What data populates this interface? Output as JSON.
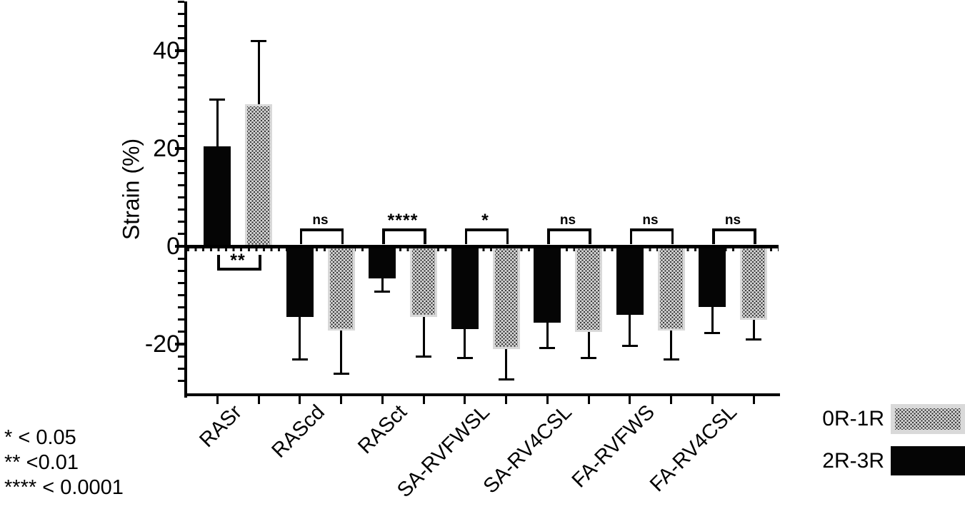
{
  "chart_data": {
    "type": "bar",
    "title": "",
    "ylabel": "Strain (%)",
    "xlabel": "",
    "ylim": [
      -30,
      50
    ],
    "yticks_major": [
      40,
      20,
      0,
      -20
    ],
    "ytick_minor_step": 2.5,
    "grid": false,
    "legend_position": "bottom-right",
    "categories": [
      "RASr",
      "RAScd",
      "RASct",
      "SA-RVFWSL",
      "SA-RV4CSL",
      "FA-RVFWS",
      "FA-RV4CSL"
    ],
    "series": [
      {
        "name": "2R-3R",
        "style": "solid-black",
        "color": "#050505",
        "values": [
          20.5,
          -14.4,
          -6.5,
          -17.0,
          -15.6,
          -14.0,
          -12.4
        ],
        "errors": [
          9.5,
          8.8,
          2.8,
          5.8,
          5.2,
          6.4,
          5.4
        ]
      },
      {
        "name": "0R-1R",
        "style": "dotted-gray",
        "color": "#dcdcdc",
        "dot_color": "#3c3c3c",
        "values": [
          29.0,
          -17.2,
          -14.4,
          -21.0,
          -17.5,
          -17.2,
          -15.0
        ],
        "errors": [
          13.0,
          8.8,
          8.2,
          6.2,
          5.3,
          5.9,
          4.1
        ]
      }
    ],
    "significance": [
      {
        "category": "RASr",
        "label": "**",
        "placement": "below"
      },
      {
        "category": "RAScd",
        "label": "ns",
        "placement": "above"
      },
      {
        "category": "RASct",
        "label": "****",
        "placement": "above"
      },
      {
        "category": "SA-RVFWSL",
        "label": "*",
        "placement": "above"
      },
      {
        "category": "SA-RV4CSL",
        "label": "ns",
        "placement": "above"
      },
      {
        "category": "FA-RVFWS",
        "label": "ns",
        "placement": "above"
      },
      {
        "category": "FA-RV4CSL",
        "label": "ns",
        "placement": "above"
      }
    ]
  },
  "legend": {
    "items": [
      {
        "label": "0R-1R",
        "swatch": "dotted-gray"
      },
      {
        "label": "2R-3R",
        "swatch": "solid-black"
      }
    ]
  },
  "sig_key": {
    "lines": [
      "* < 0.05",
      "** <0.01",
      "**** < 0.0001"
    ]
  }
}
